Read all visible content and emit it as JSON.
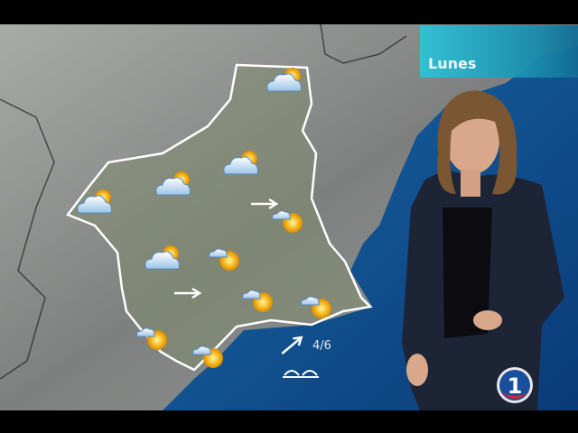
{
  "forecast": {
    "day_label": "Lunes",
    "wind_value": "4/6",
    "icons": [
      {
        "type": "cloud-sun-icon"
      },
      {
        "type": "cloud-sun-icon"
      },
      {
        "type": "cloud-sun-icon"
      },
      {
        "type": "cloud-sun-icon"
      },
      {
        "type": "cloud-sun-icon"
      },
      {
        "type": "sun-small-cloud-icon"
      },
      {
        "type": "sun-small-cloud-icon"
      },
      {
        "type": "sun-small-cloud-icon"
      },
      {
        "type": "sun-small-cloud-icon"
      },
      {
        "type": "sun-small-cloud-icon"
      },
      {
        "type": "sun-small-cloud-icon"
      }
    ]
  },
  "channel": {
    "logo": "1",
    "brand_color": "#d8232a"
  },
  "colors": {
    "sea": "#0f4f8c",
    "land": "#8f9290",
    "region": "#7f8a6e",
    "outline": "#ffffff"
  }
}
